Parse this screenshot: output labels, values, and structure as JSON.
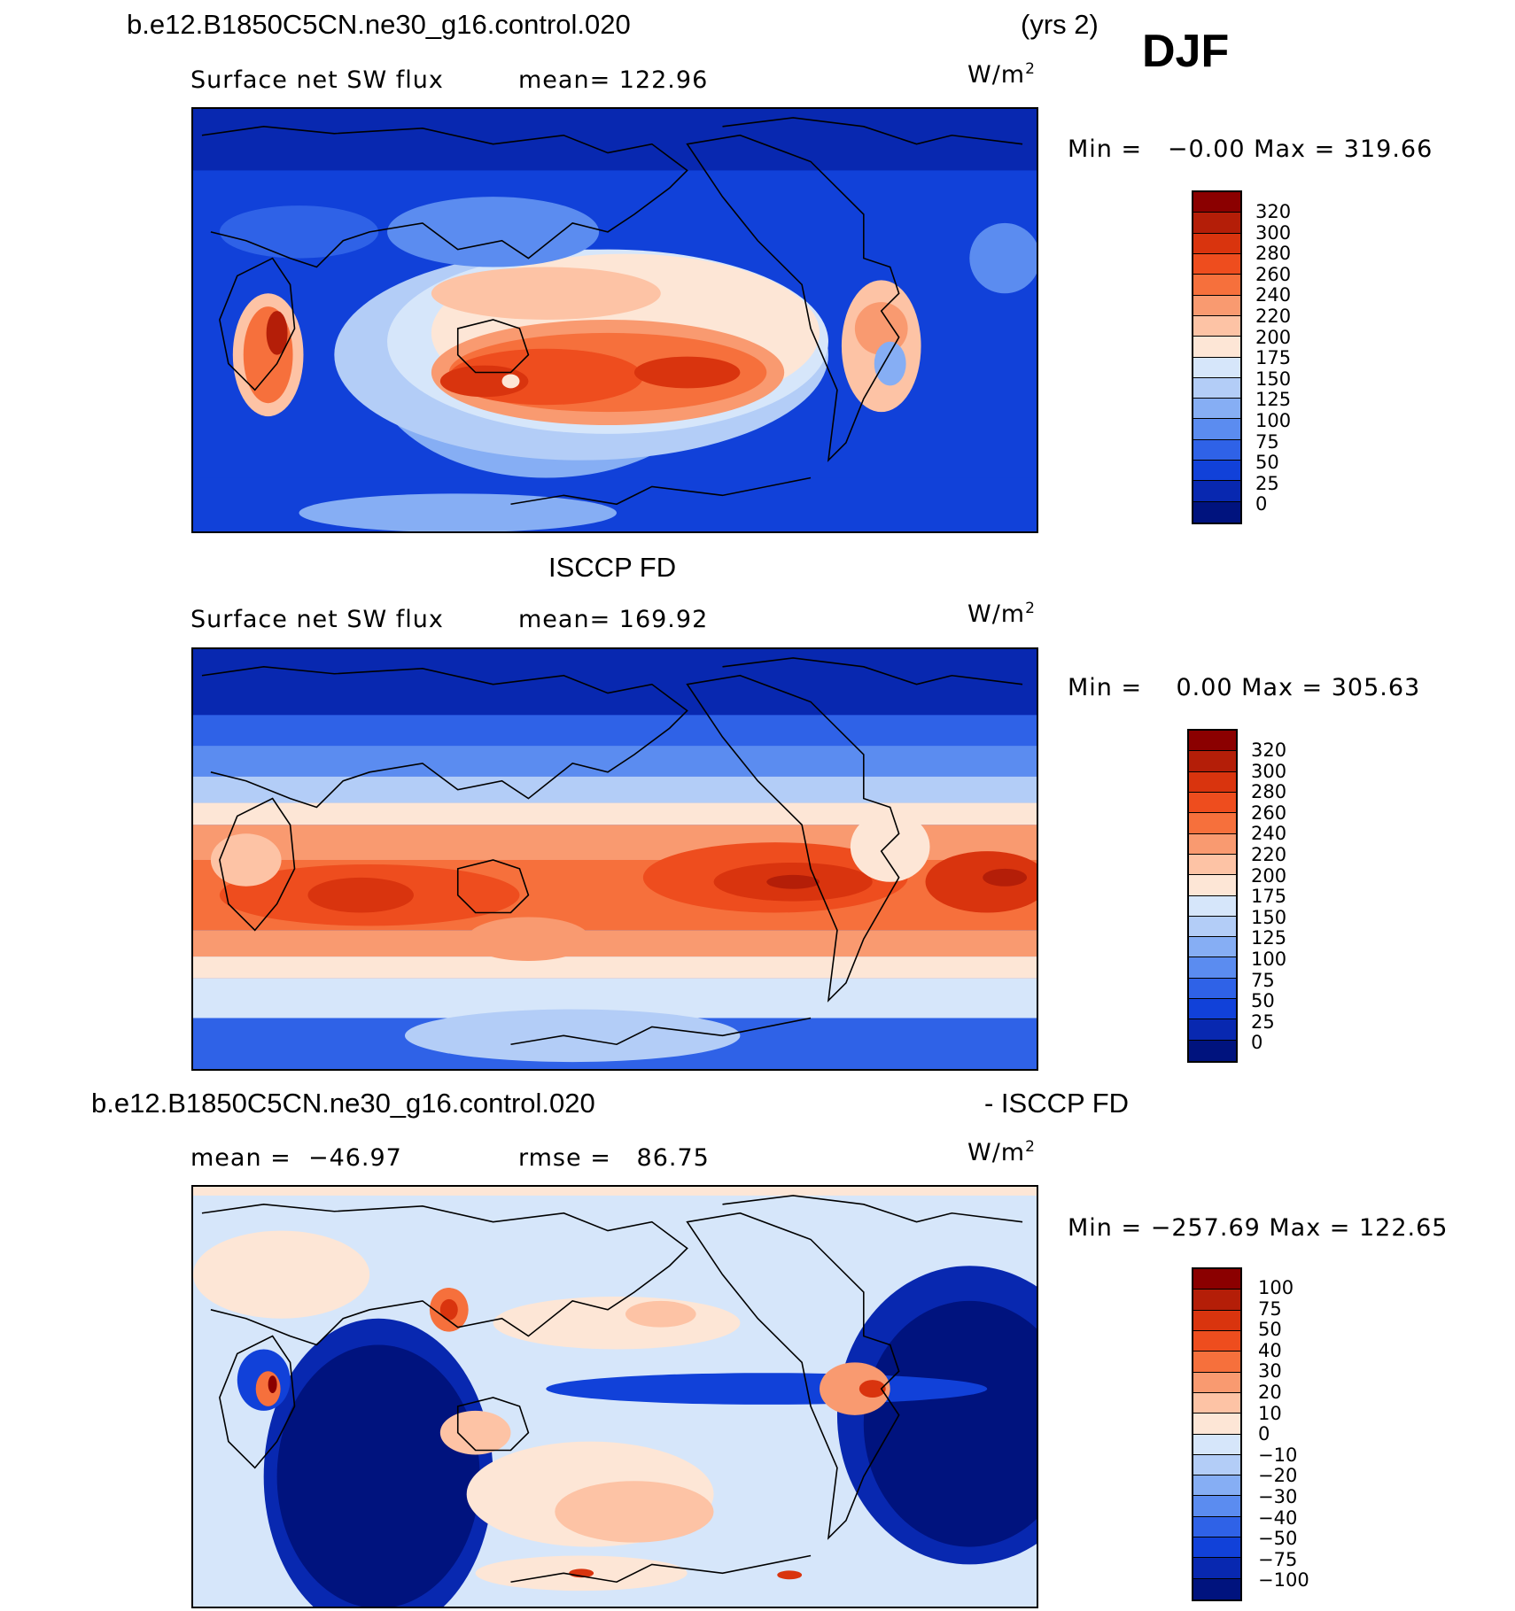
{
  "header": {
    "case_name": "b.e12.B1850C5CN.ne30_g16.control.020",
    "years": "(yrs 2)",
    "season": "DJF"
  },
  "panels": [
    {
      "title": "",
      "left_label": "Surface net SW flux",
      "mid_label": "mean= 122.96",
      "units_base": "W/m",
      "units_sup": "2",
      "minmax": "Min =   −0.00 Max = 319.66",
      "colorbar": {
        "ticks": [
          "320",
          "300",
          "280",
          "260",
          "240",
          "220",
          "200",
          "175",
          "150",
          "125",
          "100",
          "75",
          "50",
          "25",
          "0"
        ],
        "colors": [
          "#8b0000",
          "#b41e08",
          "#d9340e",
          "#ee4d1e",
          "#f6703c",
          "#f99a70",
          "#fdc3a5",
          "#fde6d6",
          "#d6e6fa",
          "#b3cdf7",
          "#86aef4",
          "#5b8cf0",
          "#2f62e7",
          "#1141d9",
          "#0828b0",
          "#00137e"
        ]
      }
    },
    {
      "title": "ISCCP FD",
      "left_label": "Surface net SW flux",
      "mid_label": "mean= 169.92",
      "units_base": "W/m",
      "units_sup": "2",
      "minmax": "Min =    0.00 Max = 305.63",
      "colorbar": {
        "ticks": [
          "320",
          "300",
          "280",
          "260",
          "240",
          "220",
          "200",
          "175",
          "150",
          "125",
          "100",
          "75",
          "50",
          "25",
          "0"
        ],
        "colors": [
          "#8b0000",
          "#b41e08",
          "#d9340e",
          "#ee4d1e",
          "#f6703c",
          "#f99a70",
          "#fdc3a5",
          "#fde6d6",
          "#d6e6fa",
          "#b3cdf7",
          "#86aef4",
          "#5b8cf0",
          "#2f62e7",
          "#1141d9",
          "#0828b0",
          "#00137e"
        ]
      }
    },
    {
      "title_left": "b.e12.B1850C5CN.ne30_g16.control.020",
      "title_right": "- ISCCP FD",
      "left_label": "mean =  −46.97",
      "mid_label": "rmse =   86.75",
      "units_base": "W/m",
      "units_sup": "2",
      "minmax": "Min = −257.69 Max = 122.65",
      "colorbar": {
        "ticks": [
          "100",
          "75",
          "50",
          "40",
          "30",
          "20",
          "10",
          "0",
          "−10",
          "−20",
          "−30",
          "−40",
          "−50",
          "−75",
          "−100"
        ],
        "colors": [
          "#8b0000",
          "#b41e08",
          "#d9340e",
          "#ee4d1e",
          "#f6703c",
          "#f99a70",
          "#fdc3a5",
          "#fde6d6",
          "#d6e6fa",
          "#b3cdf7",
          "#86aef4",
          "#5b8cf0",
          "#2f62e7",
          "#1141d9",
          "#0828b0",
          "#00137e"
        ]
      }
    }
  ],
  "palette": {
    "deep_blue": "#0828b0",
    "blue": "#2f62e7",
    "light_blue": "#b3cdf7",
    "cream": "#fde6d6",
    "orange": "#f6703c",
    "red": "#d9340e",
    "dark_red": "#8b0000"
  }
}
